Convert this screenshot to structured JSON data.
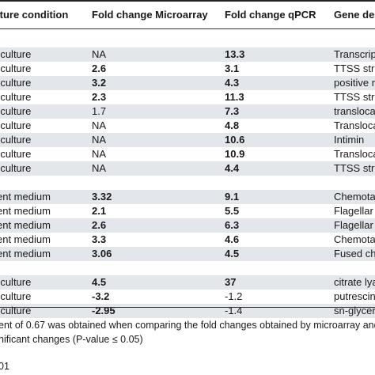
{
  "header": {
    "col1": "lture condition",
    "col2": "Fold change Microarray",
    "col3": "Fold change qPCR",
    "col4": "Gene des"
  },
  "rows": [
    {
      "shaded": false,
      "c1": "",
      "c2": "",
      "c3": "",
      "c4": ""
    },
    {
      "shaded": true,
      "c1": "-culture",
      "c2": "NA",
      "c2b": false,
      "c3": "13.3",
      "c3b": true,
      "c4": "Transcript"
    },
    {
      "shaded": false,
      "c1": "-culture",
      "c2": "2.6",
      "c2b": true,
      "c3": "3.1",
      "c3b": true,
      "c4": "TTSS stru"
    },
    {
      "shaded": true,
      "c1": "-culture",
      "c2": "3.2",
      "c2b": true,
      "c3": "4.3",
      "c3b": true,
      "c4": "positive re"
    },
    {
      "shaded": false,
      "c1": "-culture",
      "c2": "2.3",
      "c2b": true,
      "c3": "11.3",
      "c3b": true,
      "c4": "TTSS stru"
    },
    {
      "shaded": true,
      "c1": "-culture",
      "c2": "1.7",
      "c2b": false,
      "c3": "7.3",
      "c3b": true,
      "c4": "translocat"
    },
    {
      "shaded": false,
      "c1": "-culture",
      "c2": "NA",
      "c2b": false,
      "c3": "4.8",
      "c3b": true,
      "c4": "Transloca"
    },
    {
      "shaded": true,
      "c1": "-culture",
      "c2": "NA",
      "c2b": false,
      "c3": "10.6",
      "c3b": true,
      "c4": "Intimin"
    },
    {
      "shaded": false,
      "c1": "-culture",
      "c2": "NA",
      "c2b": false,
      "c3": "10.9",
      "c3b": true,
      "c4": "Transloca"
    },
    {
      "shaded": true,
      "c1": "-culture",
      "c2": "NA",
      "c2b": false,
      "c3": "4.4",
      "c3b": true,
      "c4": "TTSS stru"
    },
    {
      "shaded": false,
      "c1": "",
      "c2": "",
      "c3": "",
      "c4": ""
    },
    {
      "shaded": true,
      "c1": "ent medium",
      "c2": "3.32",
      "c2b": true,
      "c3": "9.1",
      "c3b": true,
      "c4": "Chemotax"
    },
    {
      "shaded": false,
      "c1": "ent medium",
      "c2": "2.1",
      "c2b": true,
      "c3": "5.5",
      "c3b": true,
      "c4": "Flagellar r"
    },
    {
      "shaded": true,
      "c1": "ent medium",
      "c2": "2.6",
      "c2b": true,
      "c3": "6.3",
      "c3b": true,
      "c4": "Flagellar r"
    },
    {
      "shaded": false,
      "c1": "ent medium",
      "c2": "3.3",
      "c2b": true,
      "c3": "4.6",
      "c3b": true,
      "c4": "Chemotax"
    },
    {
      "shaded": true,
      "c1": "ent medium",
      "c2": "3.06",
      "c2b": true,
      "c3": "4.5",
      "c3b": true,
      "c4": "Fused che"
    },
    {
      "shaded": false,
      "c1": "",
      "c2": "",
      "c3": "",
      "c4": ""
    },
    {
      "shaded": true,
      "c1": "-culture",
      "c2": "4.5",
      "c2b": true,
      "c3": "37",
      "c3b": true,
      "c4": "citrate lyas"
    },
    {
      "shaded": false,
      "c1": "-culture",
      "c2": "-3.2",
      "c2b": true,
      "c3": "-1.2",
      "c3b": false,
      "c4": "putrescine"
    },
    {
      "shaded": true,
      "c1": "-culture",
      "c2": "-2.95",
      "c2b": true,
      "c3": "-1.4",
      "c3b": false,
      "c4": "sn-glycero"
    }
  ],
  "footnotes": [
    "ent of 0.67 was obtained when comparing the fold changes obtained by microarray and qPCR.",
    "nificant changes (P-value ≤ 0.05)"
  ],
  "doi_fragment": "01"
}
